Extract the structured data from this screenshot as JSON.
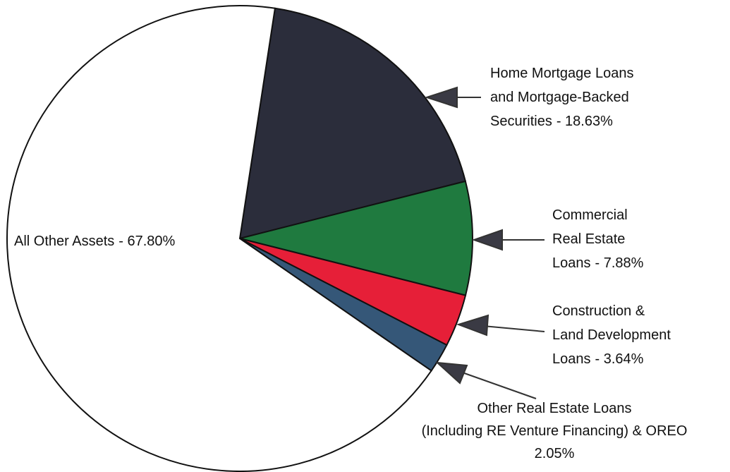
{
  "chart_data": {
    "type": "pie",
    "categories": [
      [
        "Home Mortgage Loans",
        "and Mortgage-Backed",
        "Securities"
      ],
      [
        "Commercial",
        "Real Estate",
        "Loans"
      ],
      [
        "Construction &",
        "Land Development",
        "Loans"
      ],
      [
        "Other Real Estate Loans",
        "(Including RE Venture Financing) & OREO"
      ],
      [
        "All Other Assets"
      ]
    ],
    "values": [
      18.63,
      7.88,
      3.64,
      2.05,
      67.8
    ],
    "value_labels": [
      "- 18.63%",
      "- 7.88%",
      "- 3.64%",
      "2.05%",
      "- 67.80%"
    ],
    "colors": [
      "#2b2d3b",
      "#1f7a3f",
      "#e61f38",
      "#355778",
      "#ffffff"
    ]
  }
}
